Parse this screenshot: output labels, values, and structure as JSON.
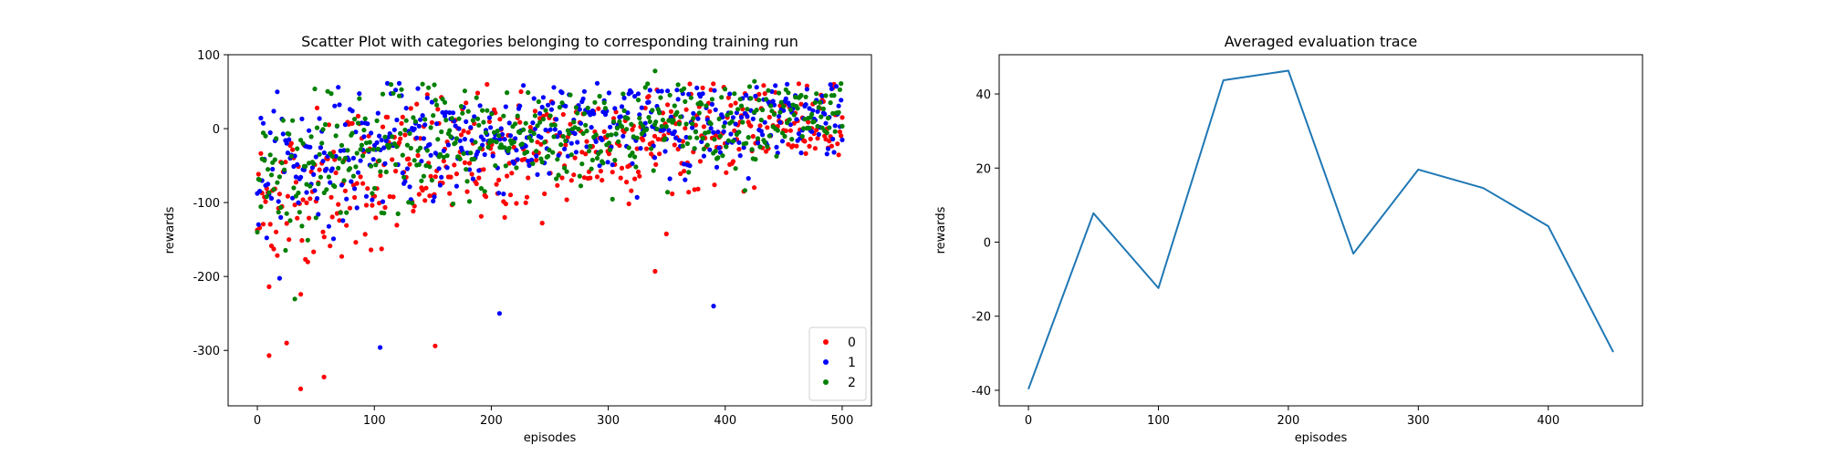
{
  "chart_data": [
    {
      "type": "scatter",
      "title": "Scatter Plot with categories belonging to corresponding training run",
      "xlabel": "episodes",
      "ylabel": "rewards",
      "xlim": [
        -25,
        525
      ],
      "ylim": [
        -375,
        100
      ],
      "xticks": [
        0,
        100,
        200,
        300,
        400,
        500
      ],
      "yticks": [
        -300,
        -200,
        -100,
        0,
        100
      ],
      "legend": {
        "placement": "lower-right",
        "entries": [
          "0",
          "1",
          "2"
        ]
      },
      "series": [
        {
          "name": "0",
          "color": "#ff0000",
          "count": 500,
          "approx_mean_start": -120,
          "approx_mean_end": 10,
          "approx_spread": 55
        },
        {
          "name": "1",
          "color": "#0000ff",
          "count": 500,
          "approx_mean_start": -70,
          "approx_mean_end": 20,
          "approx_spread": 45
        },
        {
          "name": "2",
          "color": "#008000",
          "count": 500,
          "approx_mean_start": -80,
          "approx_mean_end": 20,
          "approx_spread": 45
        }
      ],
      "notable_points": [
        {
          "series": "0",
          "x": 37,
          "y": -352
        },
        {
          "series": "0",
          "x": 57,
          "y": -336
        },
        {
          "series": "0",
          "x": 10,
          "y": -307
        },
        {
          "series": "0",
          "x": 25,
          "y": -290
        },
        {
          "series": "0",
          "x": 152,
          "y": -294
        },
        {
          "series": "1",
          "x": 105,
          "y": -296
        },
        {
          "series": "1",
          "x": 207,
          "y": -250
        },
        {
          "series": "1",
          "x": 390,
          "y": -240
        },
        {
          "series": "0",
          "x": 340,
          "y": -193
        },
        {
          "series": "2",
          "x": 340,
          "y": 78
        },
        {
          "series": "2",
          "x": 425,
          "y": 64
        }
      ]
    },
    {
      "type": "line",
      "title": "Averaged evaluation trace",
      "xlabel": "episodes",
      "ylabel": "rewards",
      "xlim": [
        -22.5,
        472.5
      ],
      "ylim": [
        -44.2,
        50.6
      ],
      "xticks": [
        0,
        100,
        200,
        300,
        400
      ],
      "yticks": [
        -40,
        -20,
        0,
        20,
        40
      ],
      "color": "#1f77b4",
      "x": [
        0,
        50,
        100,
        150,
        200,
        250,
        300,
        350,
        400,
        450
      ],
      "y": [
        -39.7,
        7.8,
        -12.4,
        43.7,
        46.3,
        -3.1,
        19.6,
        14.6,
        4.3,
        -29.7
      ]
    }
  ]
}
